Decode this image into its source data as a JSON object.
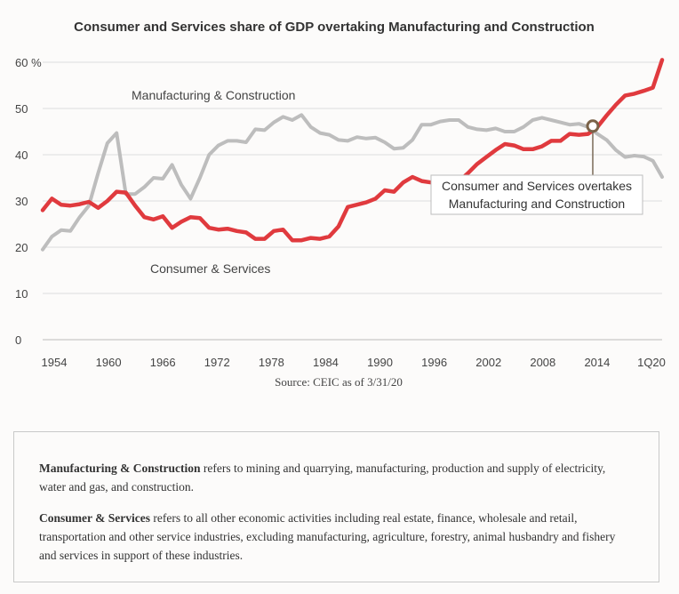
{
  "chart_data": {
    "type": "line",
    "title": "Consumer and Services share of GDP overtaking Manufacturing and Construction",
    "ylim": [
      0,
      60
    ],
    "y_ticks": [
      "60",
      "50",
      "40",
      "30",
      "20",
      "10",
      "0"
    ],
    "y_unit": "%",
    "x_ticks": [
      "1954",
      "1960",
      "1966",
      "1972",
      "1978",
      "1984",
      "1990",
      "1996",
      "2002",
      "2008",
      "2014",
      "1Q20"
    ],
    "xlim": [
      1953,
      2020
    ],
    "grid": true,
    "series": [
      {
        "name": "Manufacturing & Construction",
        "color": "#bdbdbd",
        "points": [
          [
            1953,
            19.5
          ],
          [
            1954,
            22.3
          ],
          [
            1955,
            23.7
          ],
          [
            1956,
            23.5
          ],
          [
            1957,
            26.5
          ],
          [
            1958,
            29
          ],
          [
            1959,
            36
          ],
          [
            1960,
            42.5
          ],
          [
            1961,
            44.7
          ],
          [
            1962,
            31.5
          ],
          [
            1963,
            31.5
          ],
          [
            1964,
            33
          ],
          [
            1965,
            35
          ],
          [
            1966,
            34.8
          ],
          [
            1967,
            37.8
          ],
          [
            1968,
            33.5
          ],
          [
            1969,
            30.5
          ],
          [
            1970,
            35
          ],
          [
            1971,
            40
          ],
          [
            1972,
            42
          ],
          [
            1973,
            43
          ],
          [
            1974,
            43
          ],
          [
            1975,
            42.7
          ],
          [
            1976,
            45.5
          ],
          [
            1977,
            45.3
          ],
          [
            1978,
            47
          ],
          [
            1979,
            48.2
          ],
          [
            1980,
            47.5
          ],
          [
            1981,
            48.6
          ],
          [
            1982,
            46
          ],
          [
            1983,
            44.7
          ],
          [
            1984,
            44.3
          ],
          [
            1985,
            43.2
          ],
          [
            1986,
            43
          ],
          [
            1987,
            43.8
          ],
          [
            1988,
            43.5
          ],
          [
            1989,
            43.7
          ],
          [
            1990,
            42.7
          ],
          [
            1991,
            41.3
          ],
          [
            1992,
            41.5
          ],
          [
            1993,
            43.2
          ],
          [
            1994,
            46.5
          ],
          [
            1995,
            46.5
          ],
          [
            1996,
            47.2
          ],
          [
            1997,
            47.5
          ],
          [
            1998,
            47.5
          ],
          [
            1999,
            46
          ],
          [
            2000,
            45.5
          ],
          [
            2001,
            45.3
          ],
          [
            2002,
            45.7
          ],
          [
            2003,
            45
          ],
          [
            2004,
            45
          ],
          [
            2005,
            46
          ],
          [
            2006,
            47.5
          ],
          [
            2007,
            48
          ],
          [
            2008,
            47.5
          ],
          [
            2009,
            47
          ],
          [
            2010,
            46.5
          ],
          [
            2011,
            46.7
          ],
          [
            2012,
            46
          ],
          [
            2013,
            44.5
          ],
          [
            2014,
            43.2
          ],
          [
            2015,
            41
          ],
          [
            2016,
            39.5
          ],
          [
            2017,
            39.8
          ],
          [
            2018,
            39.6
          ],
          [
            2019,
            38.7
          ],
          [
            2020,
            35.2
          ]
        ]
      },
      {
        "name": "Consumer & Services",
        "color": "#e03a3e",
        "points": [
          [
            1953,
            28
          ],
          [
            1954,
            30.5
          ],
          [
            1955,
            29.2
          ],
          [
            1956,
            29
          ],
          [
            1957,
            29.3
          ],
          [
            1958,
            29.8
          ],
          [
            1959,
            28.5
          ],
          [
            1960,
            30
          ],
          [
            1961,
            32
          ],
          [
            1962,
            31.8
          ],
          [
            1963,
            29
          ],
          [
            1964,
            26.5
          ],
          [
            1965,
            26
          ],
          [
            1966,
            26.7
          ],
          [
            1967,
            24.2
          ],
          [
            1968,
            25.5
          ],
          [
            1969,
            26.5
          ],
          [
            1970,
            26.3
          ],
          [
            1971,
            24.2
          ],
          [
            1972,
            23.8
          ],
          [
            1973,
            24
          ],
          [
            1974,
            23.5
          ],
          [
            1975,
            23.2
          ],
          [
            1976,
            21.8
          ],
          [
            1977,
            21.8
          ],
          [
            1978,
            23.5
          ],
          [
            1979,
            23.8
          ],
          [
            1980,
            21.5
          ],
          [
            1981,
            21.5
          ],
          [
            1982,
            22
          ],
          [
            1983,
            21.8
          ],
          [
            1984,
            22.3
          ],
          [
            1985,
            24.5
          ],
          [
            1986,
            28.7
          ],
          [
            1987,
            29.2
          ],
          [
            1988,
            29.7
          ],
          [
            1989,
            30.5
          ],
          [
            1990,
            32.3
          ],
          [
            1991,
            32
          ],
          [
            1992,
            34
          ],
          [
            1993,
            35.2
          ],
          [
            1994,
            34.3
          ],
          [
            1995,
            34
          ],
          [
            1996,
            33.5
          ],
          [
            1997,
            33
          ],
          [
            1998,
            34.2
          ],
          [
            1999,
            36
          ],
          [
            2000,
            38
          ],
          [
            2001,
            39.5
          ],
          [
            2002,
            41
          ],
          [
            2003,
            42.3
          ],
          [
            2004,
            42
          ],
          [
            2005,
            41.2
          ],
          [
            2006,
            41.2
          ],
          [
            2007,
            41.8
          ],
          [
            2008,
            43
          ],
          [
            2009,
            43
          ],
          [
            2010,
            44.5
          ],
          [
            2011,
            44.3
          ],
          [
            2012,
            44.5
          ],
          [
            2013,
            46
          ],
          [
            2014,
            48.5
          ],
          [
            2015,
            50.8
          ],
          [
            2016,
            52.8
          ],
          [
            2017,
            53.2
          ],
          [
            2018,
            53.8
          ],
          [
            2019,
            54.5
          ],
          [
            2020,
            60.5
          ]
        ]
      }
    ],
    "series_labels": [
      "Manufacturing & Construction",
      "Consumer & Services"
    ],
    "annotation": {
      "text_line1": "Consumer and Services overtakes",
      "text_line2": "Manufacturing and Construction",
      "x": 2012.5,
      "y": 46.2
    },
    "source": "Source: CEIC as of 3/31/20"
  },
  "notes": {
    "item1_term": "Manufacturing & Construction",
    "item1_text": " refers to mining and quarrying, manufacturing, production and supply of electricity, water and gas, and construction.",
    "item2_term": "Consumer & Services",
    "item2_text": " refers to all other economic activities including real estate, finance, wholesale and retail, transportation and other service industries, excluding manufacturing, agriculture, forestry, animal husbandry and fishery and services in support of these industries."
  }
}
